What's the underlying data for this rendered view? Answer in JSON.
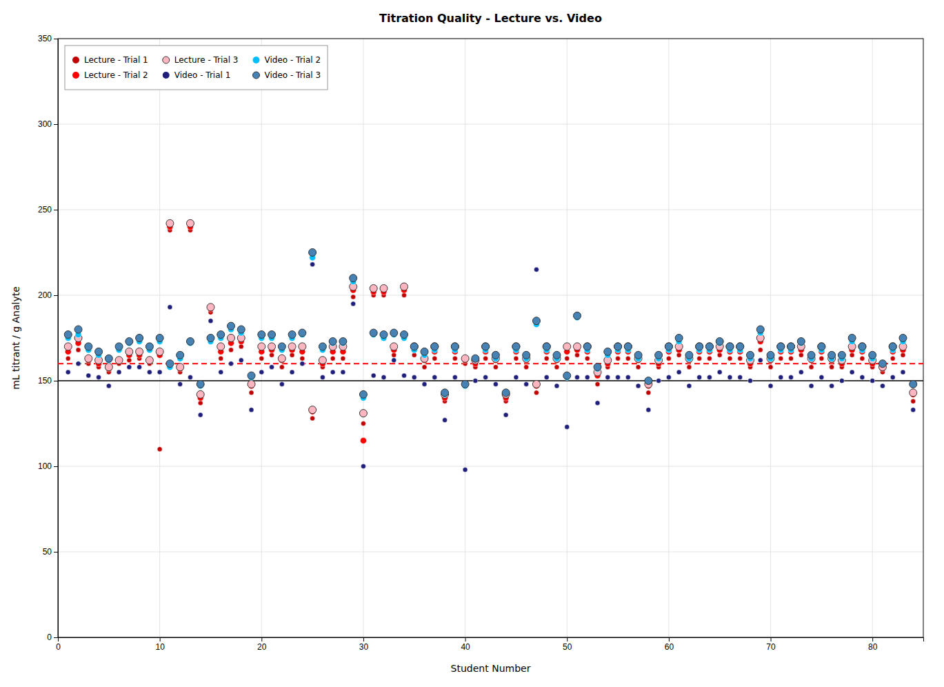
{
  "chart_data": {
    "type": "scatter",
    "title": "Titration Quality - Lecture vs. Video",
    "xlabel": "Student Number",
    "ylabel": "mL titrant / g Analyte",
    "xlim": [
      0,
      85
    ],
    "ylim": [
      0,
      350
    ],
    "xticks": [
      0,
      10,
      20,
      30,
      40,
      50,
      60,
      70,
      80
    ],
    "yticks": [
      0,
      50,
      100,
      150,
      200,
      250,
      300,
      350
    ],
    "grid": true,
    "legend": "upper left",
    "reference_lines": [
      {
        "y": 160,
        "color": "#FF0000",
        "line_style": "dashed"
      },
      {
        "y": 150,
        "color": "#000000",
        "line_style": "solid"
      }
    ],
    "series": [
      {
        "name": "Lecture - Trial 1",
        "color": "#C00000",
        "marker": "circle",
        "x": [
          1,
          2,
          3,
          4,
          5,
          6,
          7,
          8,
          9,
          10,
          11,
          12,
          13,
          14,
          15,
          16,
          17,
          18,
          19,
          20,
          21,
          22,
          23,
          24,
          25,
          26,
          27,
          28,
          29,
          30,
          31,
          32,
          33,
          34,
          35,
          36,
          37,
          38,
          39,
          40,
          41,
          42,
          43,
          44,
          45,
          46,
          47,
          48,
          49,
          50,
          51,
          52,
          53,
          54,
          55,
          56,
          57,
          58,
          59,
          60,
          61,
          62,
          63,
          64,
          65,
          66,
          67,
          68,
          69,
          70,
          71,
          72,
          73,
          74,
          75,
          76,
          77,
          78,
          79,
          80,
          81,
          82,
          83,
          84
        ],
        "values": [
          163,
          168,
          160,
          158,
          155,
          160,
          162,
          163,
          160,
          110,
          238,
          155,
          238,
          137,
          190,
          163,
          168,
          170,
          143,
          163,
          165,
          158,
          165,
          163,
          128,
          158,
          163,
          163,
          199,
          125,
          200,
          200,
          165,
          200,
          165,
          158,
          163,
          138,
          163,
          160,
          158,
          163,
          158,
          138,
          163,
          158,
          143,
          163,
          158,
          163,
          165,
          163,
          148,
          158,
          163,
          163,
          158,
          143,
          158,
          163,
          165,
          158,
          163,
          163,
          165,
          163,
          163,
          158,
          168,
          158,
          163,
          163,
          165,
          158,
          163,
          158,
          158,
          165,
          163,
          158,
          155,
          163,
          165,
          138
        ]
      },
      {
        "name": "Lecture - Trial 2",
        "color": "#FF0000",
        "marker": "circle",
        "x": [
          1,
          2,
          3,
          4,
          5,
          6,
          7,
          8,
          9,
          10,
          11,
          12,
          13,
          14,
          15,
          16,
          17,
          18,
          19,
          20,
          21,
          22,
          23,
          24,
          25,
          26,
          27,
          28,
          29,
          30,
          31,
          32,
          33,
          34,
          35,
          36,
          37,
          38,
          39,
          40,
          41,
          42,
          43,
          44,
          45,
          46,
          47,
          48,
          49,
          50,
          51,
          52,
          53,
          54,
          55,
          56,
          57,
          58,
          59,
          60,
          61,
          62,
          63,
          64,
          65,
          66,
          67,
          68,
          69,
          70,
          71,
          72,
          73,
          74,
          75,
          76,
          77,
          78,
          79,
          80,
          81,
          82,
          83,
          84
        ],
        "values": [
          167,
          172,
          162,
          160,
          157,
          162,
          165,
          165,
          162,
          165,
          240,
          157,
          240,
          140,
          192,
          167,
          172,
          173,
          147,
          167,
          168,
          162,
          168,
          167,
          132,
          160,
          167,
          167,
          203,
          115,
          202,
          202,
          168,
          203,
          168,
          162,
          167,
          140,
          167,
          162,
          160,
          167,
          162,
          140,
          167,
          162,
          147,
          167,
          162,
          167,
          168,
          167,
          153,
          160,
          167,
          167,
          162,
          147,
          160,
          167,
          168,
          162,
          167,
          167,
          168,
          167,
          167,
          160,
          173,
          162,
          167,
          167,
          168,
          162,
          167,
          162,
          160,
          168,
          167,
          160,
          157,
          167,
          168,
          142
        ]
      },
      {
        "name": "Lecture - Trial 3",
        "color": "#FFB6C1",
        "marker": "circle",
        "x": [
          1,
          2,
          3,
          4,
          5,
          6,
          7,
          8,
          9,
          10,
          11,
          12,
          13,
          14,
          15,
          16,
          17,
          18,
          19,
          20,
          21,
          22,
          23,
          24,
          25,
          26,
          27,
          28,
          29,
          30,
          31,
          32,
          33,
          34,
          35,
          36,
          37,
          38,
          39,
          40,
          41,
          42,
          43,
          44,
          45,
          46,
          47,
          48,
          49,
          50,
          51,
          52,
          53,
          54,
          55,
          56,
          57,
          58,
          59,
          60,
          61,
          62,
          63,
          64,
          65,
          66,
          67,
          68,
          69,
          70,
          71,
          72,
          73,
          74,
          75,
          76,
          77,
          78,
          79,
          80,
          81,
          82,
          83,
          84
        ],
        "values": [
          170,
          175,
          163,
          162,
          158,
          162,
          167,
          167,
          162,
          167,
          242,
          158,
          242,
          142,
          193,
          170,
          175,
          175,
          148,
          170,
          170,
          163,
          170,
          170,
          133,
          162,
          170,
          170,
          205,
          131,
          204,
          204,
          170,
          205,
          170,
          163,
          170,
          142,
          170,
          163,
          162,
          170,
          163,
          142,
          170,
          163,
          148,
          170,
          163,
          170,
          170,
          170,
          155,
          162,
          170,
          170,
          163,
          148,
          162,
          170,
          170,
          163,
          170,
          170,
          170,
          170,
          170,
          162,
          175,
          163,
          170,
          170,
          170,
          163,
          170,
          163,
          162,
          170,
          170,
          162,
          158,
          170,
          170,
          143
        ]
      },
      {
        "name": "Video - Trial 1",
        "color": "#1F1F7A",
        "marker": "circle",
        "x": [
          1,
          2,
          3,
          4,
          5,
          6,
          7,
          8,
          9,
          10,
          11,
          12,
          13,
          14,
          15,
          16,
          17,
          18,
          19,
          20,
          21,
          22,
          23,
          24,
          25,
          26,
          27,
          28,
          29,
          30,
          31,
          32,
          33,
          34,
          35,
          36,
          37,
          38,
          39,
          40,
          41,
          42,
          43,
          44,
          45,
          46,
          47,
          48,
          49,
          50,
          51,
          52,
          53,
          54,
          55,
          56,
          57,
          58,
          59,
          60,
          61,
          62,
          63,
          64,
          65,
          66,
          67,
          68,
          69,
          70,
          71,
          72,
          73,
          74,
          75,
          76,
          77,
          78,
          79,
          80,
          81,
          82,
          83,
          84
        ],
        "values": [
          155,
          160,
          153,
          152,
          147,
          155,
          158,
          158,
          155,
          155,
          193,
          148,
          152,
          130,
          185,
          155,
          160,
          162,
          133,
          155,
          158,
          148,
          155,
          160,
          218,
          152,
          155,
          155,
          195,
          100,
          153,
          152,
          162,
          153,
          152,
          148,
          152,
          127,
          152,
          98,
          150,
          152,
          148,
          130,
          152,
          148,
          215,
          152,
          147,
          123,
          152,
          152,
          137,
          152,
          152,
          152,
          147,
          133,
          150,
          152,
          155,
          147,
          152,
          152,
          155,
          152,
          152,
          150,
          162,
          147,
          152,
          152,
          155,
          147,
          152,
          147,
          150,
          155,
          152,
          150,
          147,
          152,
          155,
          133
        ]
      },
      {
        "name": "Video - Trial 2",
        "color": "#00BFFF",
        "marker": "circle",
        "x": [
          1,
          2,
          3,
          4,
          5,
          6,
          7,
          8,
          9,
          10,
          11,
          12,
          13,
          14,
          15,
          16,
          17,
          18,
          19,
          20,
          21,
          22,
          23,
          24,
          25,
          26,
          27,
          28,
          29,
          30,
          31,
          32,
          33,
          34,
          35,
          36,
          37,
          38,
          39,
          40,
          41,
          42,
          43,
          44,
          45,
          46,
          47,
          48,
          49,
          50,
          51,
          52,
          53,
          54,
          55,
          56,
          57,
          58,
          59,
          60,
          61,
          62,
          63,
          64,
          65,
          66,
          67,
          68,
          69,
          70,
          71,
          72,
          73,
          74,
          75,
          76,
          77,
          78,
          79,
          80,
          81,
          82,
          83,
          84
        ],
        "values": [
          175,
          177,
          168,
          165,
          162,
          168,
          172,
          173,
          168,
          173,
          158,
          163,
          172,
          147,
          173,
          175,
          180,
          178,
          152,
          175,
          175,
          168,
          175,
          177,
          222,
          168,
          172,
          172,
          208,
          140,
          177,
          175,
          177,
          175,
          168,
          165,
          168,
          142,
          168,
          147,
          163,
          168,
          163,
          143,
          168,
          163,
          183,
          168,
          163,
          152,
          187,
          168,
          157,
          165,
          168,
          168,
          163,
          150,
          163,
          168,
          173,
          163,
          168,
          168,
          172,
          168,
          168,
          163,
          178,
          163,
          168,
          168,
          172,
          163,
          168,
          163,
          163,
          173,
          168,
          163,
          160,
          168,
          173,
          148
        ]
      },
      {
        "name": "Video - Trial 3",
        "color": "#4682B4",
        "marker": "circle",
        "x": [
          1,
          2,
          3,
          4,
          5,
          6,
          7,
          8,
          9,
          10,
          11,
          12,
          13,
          14,
          15,
          16,
          17,
          18,
          19,
          20,
          21,
          22,
          23,
          24,
          25,
          26,
          27,
          28,
          29,
          30,
          31,
          32,
          33,
          34,
          35,
          36,
          37,
          38,
          39,
          40,
          41,
          42,
          43,
          44,
          45,
          46,
          47,
          48,
          49,
          50,
          51,
          52,
          53,
          54,
          55,
          56,
          57,
          58,
          59,
          60,
          61,
          62,
          63,
          64,
          65,
          66,
          67,
          68,
          69,
          70,
          71,
          72,
          73,
          74,
          75,
          76,
          77,
          78,
          79,
          80,
          81,
          82,
          83,
          84
        ],
        "values": [
          177,
          180,
          170,
          167,
          163,
          170,
          173,
          175,
          170,
          175,
          160,
          165,
          173,
          148,
          175,
          177,
          182,
          180,
          153,
          177,
          177,
          170,
          177,
          178,
          225,
          170,
          173,
          173,
          210,
          142,
          178,
          177,
          178,
          177,
          170,
          167,
          170,
          143,
          170,
          148,
          163,
          170,
          165,
          143,
          170,
          165,
          185,
          170,
          165,
          153,
          188,
          170,
          158,
          167,
          170,
          170,
          165,
          150,
          165,
          170,
          175,
          165,
          170,
          170,
          173,
          170,
          170,
          165,
          180,
          165,
          170,
          170,
          173,
          165,
          170,
          165,
          165,
          175,
          170,
          165,
          160,
          170,
          175,
          148
        ]
      }
    ]
  }
}
